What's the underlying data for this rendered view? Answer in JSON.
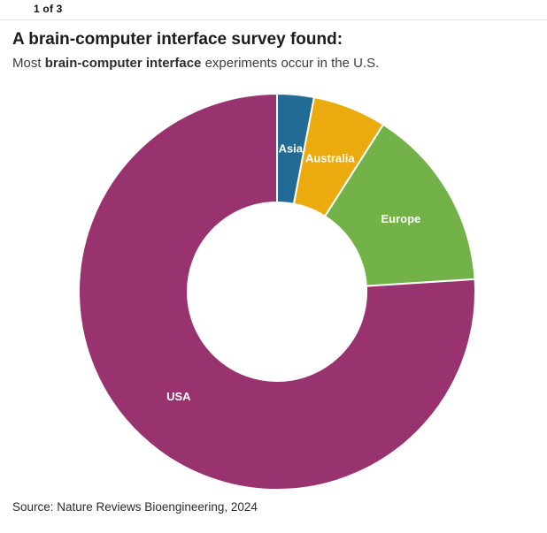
{
  "header": {
    "pagination": "1 of 3"
  },
  "title": "A brain-computer interface survey found:",
  "subtitle": {
    "prefix": "Most ",
    "bold": "brain-computer interface",
    "suffix": " experiments occur in the U.S."
  },
  "source": "Source: Nature Reviews Bioengineering, 2024",
  "chart_data": {
    "type": "pie",
    "subtype": "donut",
    "title": "A brain-computer interface survey found:",
    "subtitle": "Most brain-computer interface experiments occur in the U.S.",
    "categories": [
      "Asia",
      "Australia",
      "Europe",
      "USA"
    ],
    "values": [
      3,
      6,
      15,
      76
    ],
    "unit": "percent (estimated from arc angles, no numeric labels shown)",
    "colors": [
      "#226b97",
      "#ebaa0d",
      "#72b249",
      "#993370"
    ],
    "start_angle_deg": 0,
    "direction": "clockwise",
    "inner_radius_ratio": 0.45,
    "gap_color": "#ffffff",
    "legend": "none - labels drawn inside slices",
    "label_color": "#ffffff"
  }
}
